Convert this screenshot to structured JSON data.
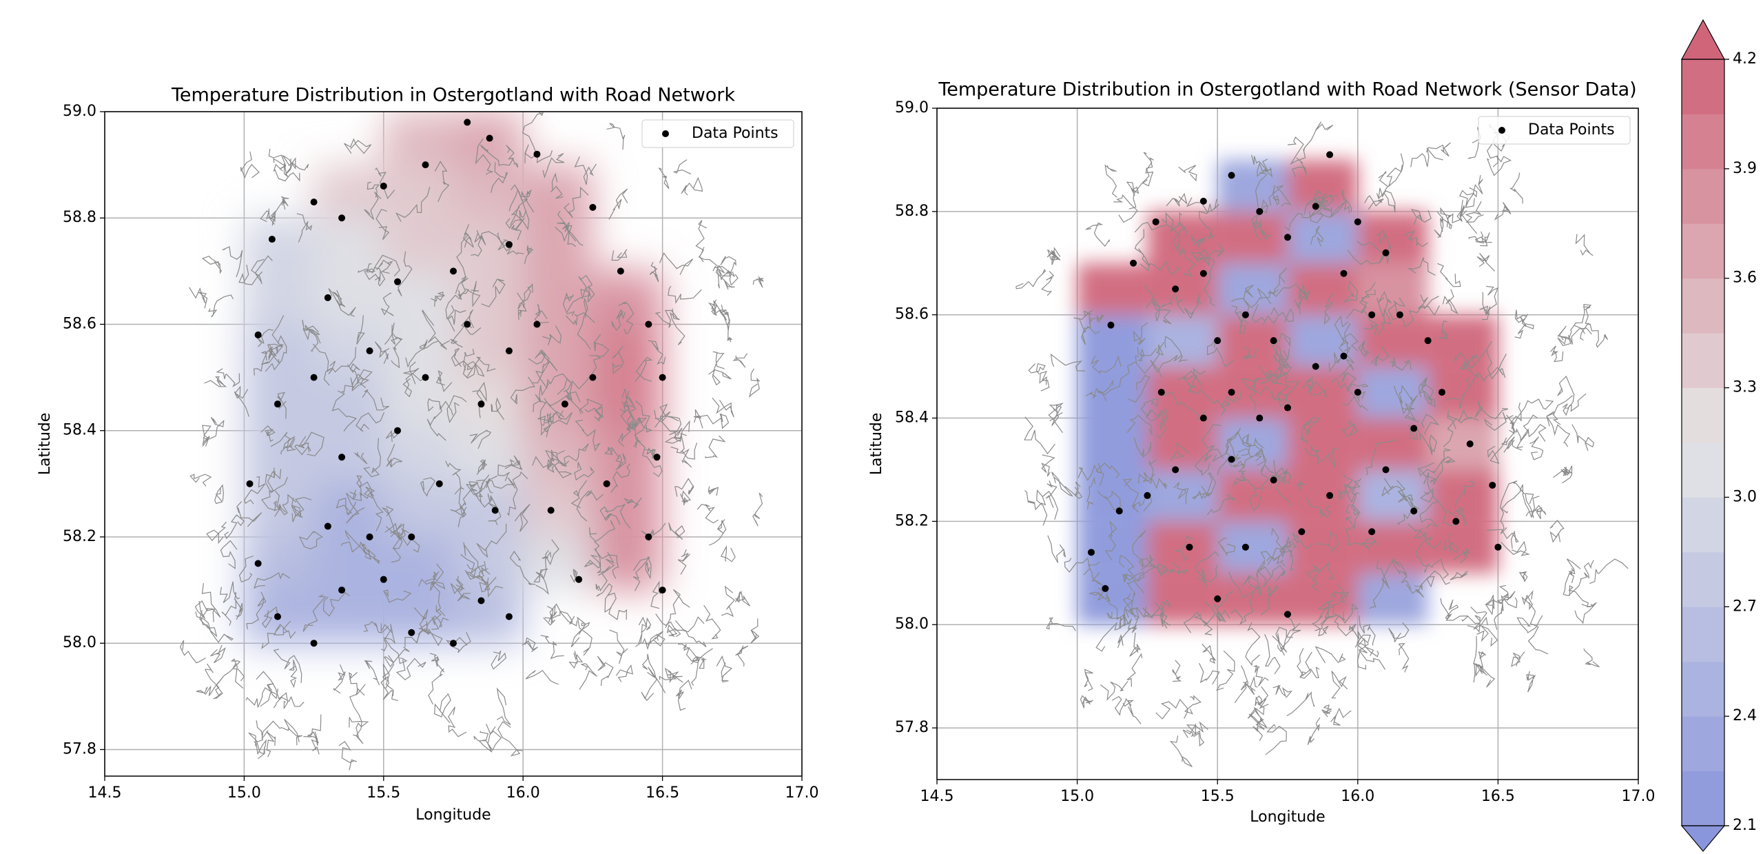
{
  "chart_data": [
    {
      "type": "contour",
      "title": "Temperature Distribution in Ostergotland with Road Network",
      "xlabel": "Longitude",
      "ylabel": "Latitude",
      "xlim": [
        14.5,
        17.0
      ],
      "ylim": [
        57.75,
        59.0
      ],
      "xticks": [
        14.5,
        {
          "value": 15.0,
          "label": "15.0"
        },
        15.5,
        {
          "value": 16.0,
          "label": "16.0"
        },
        16.5,
        {
          "value": 17.0,
          "label": "17.0"
        }
      ],
      "yticks": [
        57.8,
        {
          "value": 58.0,
          "label": "58.0"
        },
        58.2,
        58.4,
        58.6,
        58.8,
        {
          "value": 59.0,
          "label": "59.0"
        }
      ],
      "grid": true,
      "legend": "upper right",
      "field": {
        "lon": [
          15.125,
          15.375,
          15.625,
          15.875,
          16.125,
          16.375
        ],
        "lat": [
          58.05,
          58.15,
          58.25,
          58.35,
          58.45,
          58.55,
          58.65,
          58.75,
          58.85,
          58.95
        ],
        "values": [
          [
            2.5,
            2.4,
            2.5,
            2.6,
            null,
            null
          ],
          [
            2.6,
            2.4,
            2.5,
            2.7,
            3.1,
            3.8
          ],
          [
            2.7,
            2.5,
            2.7,
            2.8,
            3.3,
            3.8
          ],
          [
            2.8,
            2.7,
            2.9,
            3.0,
            3.5,
            3.8
          ],
          [
            2.8,
            2.8,
            3.0,
            3.2,
            3.6,
            3.9
          ],
          [
            2.8,
            2.9,
            3.1,
            3.3,
            3.6,
            3.9
          ],
          [
            2.9,
            3.0,
            3.1,
            3.3,
            3.6,
            3.8
          ],
          [
            2.9,
            3.1,
            3.3,
            3.4,
            3.6,
            null
          ],
          [
            null,
            3.3,
            3.4,
            3.5,
            3.6,
            null
          ],
          [
            null,
            null,
            3.5,
            3.6,
            null,
            null
          ]
        ]
      },
      "series": [
        {
          "name": "Data Points",
          "color": "#000000",
          "x": [
            15.1,
            15.25,
            15.35,
            15.5,
            15.65,
            15.8,
            15.88,
            16.05,
            16.25,
            16.35,
            16.45,
            16.5,
            16.48,
            16.45,
            16.5,
            16.2,
            16.3,
            16.15,
            16.05,
            15.95,
            15.75,
            15.55,
            15.3,
            15.05,
            15.12,
            15.02,
            15.05,
            15.12,
            15.25,
            15.35,
            15.45,
            15.6,
            15.75,
            15.85,
            15.95,
            15.9,
            15.7,
            15.55,
            15.35,
            15.25,
            15.45,
            15.65,
            15.85,
            15.95,
            15.8,
            16.1,
            16.25,
            15.6,
            15.3,
            15.5
          ],
          "y": [
            58.76,
            58.83,
            58.8,
            58.86,
            58.9,
            58.98,
            58.95,
            58.92,
            58.82,
            58.7,
            58.6,
            58.5,
            58.35,
            58.2,
            58.1,
            58.12,
            58.3,
            58.45,
            58.6,
            58.75,
            58.7,
            58.68,
            58.65,
            58.58,
            58.45,
            58.3,
            58.15,
            58.05,
            58.0,
            58.1,
            58.2,
            58.02,
            58.0,
            58.08,
            58.05,
            58.25,
            58.3,
            58.4,
            58.35,
            58.5,
            58.55,
            58.5,
            58.45,
            58.55,
            58.6,
            58.25,
            58.5,
            58.2,
            58.22,
            58.12
          ]
        }
      ]
    },
    {
      "type": "contour",
      "title": "Temperature Distribution in Ostergotland with Road Network (Sensor Data)",
      "xlabel": "Longitude",
      "ylabel": "Latitude",
      "xlim": [
        14.5,
        17.0
      ],
      "ylim": [
        57.7,
        59.0
      ],
      "xticks": [
        14.5,
        {
          "value": 15.0,
          "label": "15.0"
        },
        15.5,
        {
          "value": 16.0,
          "label": "16.0"
        },
        16.5,
        {
          "value": 17.0,
          "label": "17.0"
        }
      ],
      "yticks": [
        57.8,
        {
          "value": 58.0,
          "label": "58.0"
        },
        58.2,
        58.4,
        58.6,
        58.8,
        {
          "value": 59.0,
          "label": "59.0"
        }
      ],
      "grid": true,
      "legend": "upper right",
      "field": {
        "lon": [
          15.125,
          15.375,
          15.625,
          15.875,
          16.125,
          16.375
        ],
        "lat": [
          58.05,
          58.15,
          58.25,
          58.35,
          58.45,
          58.55,
          58.65,
          58.75,
          58.85
        ],
        "values": [
          [
            2.2,
            4.1,
            4.1,
            4.1,
            2.3,
            null
          ],
          [
            2.2,
            4.1,
            2.3,
            4.1,
            4.1,
            4.1
          ],
          [
            2.2,
            2.3,
            4.1,
            4.1,
            2.4,
            4.1
          ],
          [
            2.2,
            4.1,
            2.3,
            4.1,
            4.1,
            3.6
          ],
          [
            2.2,
            4.1,
            4.1,
            4.1,
            2.3,
            4.1
          ],
          [
            2.2,
            2.4,
            4.1,
            2.3,
            4.1,
            4.1
          ],
          [
            4.1,
            4.1,
            2.3,
            4.1,
            3.8,
            null
          ],
          [
            null,
            4.1,
            4.1,
            2.3,
            4.1,
            null
          ],
          [
            null,
            null,
            2.3,
            4.1,
            null,
            null
          ]
        ]
      },
      "series": [
        {
          "name": "Data Points",
          "color": "#000000",
          "x": [
            15.05,
            15.1,
            15.15,
            15.12,
            15.2,
            15.28,
            15.35,
            15.45,
            15.55,
            15.65,
            15.75,
            15.85,
            15.9,
            16.0,
            16.1,
            16.15,
            16.25,
            16.3,
            16.4,
            16.48,
            16.5,
            16.35,
            16.2,
            16.1,
            16.0,
            15.95,
            15.85,
            15.75,
            15.65,
            15.55,
            15.5,
            15.45,
            15.35,
            15.25,
            15.4,
            15.5,
            15.6,
            15.75,
            15.8,
            15.9,
            16.05,
            15.7,
            15.6,
            15.7,
            15.55,
            15.45,
            16.05,
            15.95,
            15.3,
            16.2
          ],
          "y": [
            58.14,
            58.07,
            58.22,
            58.58,
            58.7,
            58.78,
            58.65,
            58.82,
            58.87,
            58.8,
            58.75,
            58.81,
            58.91,
            58.78,
            58.72,
            58.6,
            58.55,
            58.45,
            58.35,
            58.27,
            58.15,
            58.2,
            58.22,
            58.3,
            58.45,
            58.52,
            58.5,
            58.42,
            58.4,
            58.45,
            58.55,
            58.4,
            58.3,
            58.25,
            58.15,
            58.05,
            58.15,
            58.02,
            58.18,
            58.25,
            58.18,
            58.28,
            58.6,
            58.55,
            58.32,
            58.68,
            58.6,
            58.68,
            58.45,
            58.38
          ]
        }
      ]
    }
  ],
  "colorbar": {
    "lim": [
      2.1,
      4.2
    ],
    "step": 0.15,
    "ticks": [
      2.1,
      2.4,
      2.7,
      {
        "value": 3.0,
        "label": "3.0"
      },
      3.3,
      3.6,
      3.9,
      4.2
    ],
    "colors": [
      "#8a96dc",
      "#e6e6e6",
      "#d0657a"
    ]
  }
}
